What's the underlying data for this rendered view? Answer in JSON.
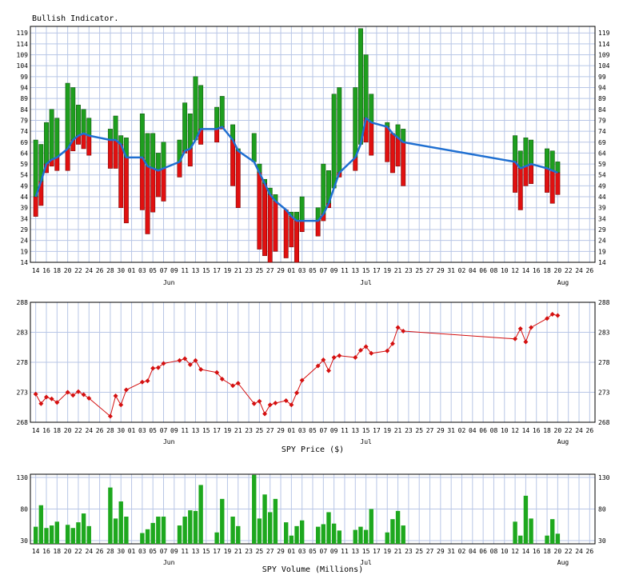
{
  "colors": {
    "grid": "#b8c6e6",
    "up_bar": "#1e9e1e",
    "down_bar": "#e01010",
    "indicator_line": "#1f6fd1",
    "price_line": "#d41010",
    "volume_bar": "#1ea81e"
  },
  "x_axis": {
    "day_labels": [
      "14",
      "16",
      "18",
      "20",
      "22",
      "24",
      "26",
      "28",
      "30",
      "01",
      "03",
      "05",
      "07",
      "09",
      "11",
      "13",
      "15",
      "17",
      "19",
      "21",
      "23",
      "25",
      "27",
      "29",
      "01",
      "03",
      "05",
      "07",
      "09",
      "11",
      "13",
      "15",
      "17",
      "19",
      "21",
      "23",
      "25",
      "27",
      "29",
      "31",
      "02",
      "04",
      "06",
      "08",
      "10",
      "12",
      "14",
      "16",
      "18",
      "20",
      "22",
      "24",
      "26"
    ],
    "month_labels": [
      {
        "label": "Jun",
        "pos": 12.5
      },
      {
        "label": "Jul",
        "pos": 31
      },
      {
        "label": "Aug",
        "pos": 49.5
      }
    ]
  },
  "chart_data": [
    {
      "type": "bar",
      "title": "Bullish Indicator.",
      "ylim": [
        14,
        122
      ],
      "yticks": [
        14,
        19,
        24,
        29,
        34,
        39,
        44,
        49,
        54,
        59,
        64,
        69,
        74,
        79,
        84,
        89,
        94,
        99,
        104,
        109,
        114,
        119
      ],
      "series": [],
      "points": [
        {
          "x": 0,
          "lo": 35,
          "hi": 70,
          "v": 44
        },
        {
          "x": 0.5,
          "lo": 40,
          "hi": 68,
          "v": 51
        },
        {
          "x": 1,
          "lo": 55,
          "hi": 78,
          "v": 59
        },
        {
          "x": 1.5,
          "lo": 58,
          "hi": 84,
          "v": 61
        },
        {
          "x": 2,
          "lo": 56,
          "hi": 80,
          "v": 62
        },
        {
          "x": 3,
          "lo": 56,
          "hi": 96,
          "v": 66
        },
        {
          "x": 3.5,
          "lo": 65,
          "hi": 94,
          "v": 70
        },
        {
          "x": 4,
          "lo": 68,
          "hi": 86,
          "v": 72
        },
        {
          "x": 4.5,
          "lo": 66,
          "hi": 84,
          "v": 73
        },
        {
          "x": 5,
          "lo": 63,
          "hi": 80,
          "v": 72
        },
        {
          "x": 7,
          "lo": 57,
          "hi": 75,
          "v": 70
        },
        {
          "x": 7.5,
          "lo": 57,
          "hi": 81,
          "v": 70
        },
        {
          "x": 8,
          "lo": 39,
          "hi": 72,
          "v": 68
        },
        {
          "x": 8.5,
          "lo": 32,
          "hi": 71,
          "v": 62
        },
        {
          "x": 10,
          "lo": 38,
          "hi": 82,
          "v": 62
        },
        {
          "x": 10.5,
          "lo": 27,
          "hi": 73,
          "v": 58
        },
        {
          "x": 11,
          "lo": 37,
          "hi": 73,
          "v": 57
        },
        {
          "x": 11.5,
          "lo": 44,
          "hi": 64,
          "v": 56
        },
        {
          "x": 12,
          "lo": 42,
          "hi": 69,
          "v": 57
        },
        {
          "x": 13.5,
          "lo": 53,
          "hi": 70,
          "v": 60
        },
        {
          "x": 14,
          "lo": 64,
          "hi": 87,
          "v": 65
        },
        {
          "x": 14.5,
          "lo": 58,
          "hi": 82,
          "v": 66
        },
        {
          "x": 15,
          "lo": 74,
          "hi": 99,
          "v": 70
        },
        {
          "x": 15.5,
          "lo": 68,
          "hi": 95,
          "v": 75
        },
        {
          "x": 17,
          "lo": 69,
          "hi": 85,
          "v": 75
        },
        {
          "x": 17.5,
          "lo": 75,
          "hi": 90,
          "v": 76
        },
        {
          "x": 18.5,
          "lo": 49,
          "hi": 77,
          "v": 70
        },
        {
          "x": 19,
          "lo": 39,
          "hi": 66,
          "v": 65
        },
        {
          "x": 20.5,
          "lo": 61,
          "hi": 73,
          "v": 60
        },
        {
          "x": 21,
          "lo": 20,
          "hi": 59,
          "v": 55
        },
        {
          "x": 21.5,
          "lo": 17,
          "hi": 52,
          "v": 50
        },
        {
          "x": 22,
          "lo": 14,
          "hi": 48,
          "v": 45
        },
        {
          "x": 22.5,
          "lo": 19,
          "hi": 45,
          "v": 42
        },
        {
          "x": 23.5,
          "lo": 16,
          "hi": 38,
          "v": 38
        },
        {
          "x": 24,
          "lo": 21,
          "hi": 37,
          "v": 35
        },
        {
          "x": 24.5,
          "lo": 14,
          "hi": 37,
          "v": 33
        },
        {
          "x": 25,
          "lo": 28,
          "hi": 44,
          "v": 33
        },
        {
          "x": 26.5,
          "lo": 26,
          "hi": 39,
          "v": 33
        },
        {
          "x": 27,
          "lo": 33,
          "hi": 59,
          "v": 36
        },
        {
          "x": 27.5,
          "lo": 39,
          "hi": 56,
          "v": 41
        },
        {
          "x": 28,
          "lo": 55,
          "hi": 91,
          "v": 48
        },
        {
          "x": 28.5,
          "lo": 53,
          "hi": 94,
          "v": 55
        },
        {
          "x": 30,
          "lo": 56,
          "hi": 94,
          "v": 62
        },
        {
          "x": 30.5,
          "lo": 75,
          "hi": 121,
          "v": 68
        },
        {
          "x": 31,
          "lo": 69,
          "hi": 109,
          "v": 80
        },
        {
          "x": 31.5,
          "lo": 63,
          "hi": 91,
          "v": 78
        },
        {
          "x": 33,
          "lo": 60,
          "hi": 78,
          "v": 76
        },
        {
          "x": 33.5,
          "lo": 55,
          "hi": 73,
          "v": 73
        },
        {
          "x": 34,
          "lo": 58,
          "hi": 77,
          "v": 71
        },
        {
          "x": 34.5,
          "lo": 49,
          "hi": 75,
          "v": 69
        },
        {
          "x": 45,
          "lo": 46,
          "hi": 72,
          "v": 60
        },
        {
          "x": 45.5,
          "lo": 38,
          "hi": 65,
          "v": 57
        },
        {
          "x": 46,
          "lo": 49,
          "hi": 71,
          "v": 58
        },
        {
          "x": 46.5,
          "lo": 50,
          "hi": 70,
          "v": 59
        },
        {
          "x": 48,
          "lo": 46,
          "hi": 66,
          "v": 57
        },
        {
          "x": 48.5,
          "lo": 41,
          "hi": 65,
          "v": 56
        },
        {
          "x": 49,
          "lo": 45,
          "hi": 60,
          "v": 55
        }
      ]
    },
    {
      "type": "line",
      "xlabel": "SPY Price ($)",
      "ylim": [
        268,
        288
      ],
      "yticks": [
        268,
        273,
        278,
        283,
        288
      ],
      "x": [
        0,
        0.5,
        1,
        1.5,
        2,
        3,
        3.5,
        4,
        4.5,
        5,
        7,
        7.5,
        8,
        8.5,
        10,
        10.5,
        11,
        11.5,
        12,
        13.5,
        14,
        14.5,
        15,
        15.5,
        17,
        17.5,
        18.5,
        19,
        20.5,
        21,
        21.5,
        22,
        22.5,
        23.5,
        24,
        24.5,
        25,
        26.5,
        27,
        27.5,
        28,
        28.5,
        30,
        30.5,
        31,
        31.5,
        33,
        33.5,
        34,
        34.5,
        45,
        45.5,
        46,
        46.5,
        48,
        48.5,
        49
      ],
      "y": [
        272.7,
        271.1,
        272.2,
        271.9,
        271.3,
        273,
        272.5,
        273.1,
        272.6,
        272,
        269,
        272.4,
        270.9,
        273.4,
        274.7,
        274.9,
        277,
        277.1,
        277.8,
        278.3,
        278.6,
        277.6,
        278.3,
        276.8,
        276.3,
        275.2,
        274.1,
        274.5,
        271.1,
        271.5,
        269.4,
        270.9,
        271.2,
        271.6,
        270.9,
        272.9,
        275,
        277.4,
        278.4,
        276.6,
        278.8,
        279.1,
        278.8,
        280,
        280.6,
        279.5,
        279.9,
        281.1,
        283.8,
        283.2,
        281.9,
        283.6,
        281.4,
        283.8,
        285.3,
        286,
        285.8
      ]
    },
    {
      "type": "bar",
      "xlabel": "SPY Volume (Millions)",
      "ylim": [
        25,
        135
      ],
      "yticks": [
        30,
        80,
        130
      ],
      "x": [
        0,
        0.5,
        1,
        1.5,
        2,
        3,
        3.5,
        4,
        4.5,
        5,
        7,
        7.5,
        8,
        8.5,
        10,
        10.5,
        11,
        11.5,
        12,
        13.5,
        14,
        14.5,
        15,
        15.5,
        17,
        17.5,
        18.5,
        19,
        20.5,
        21,
        21.5,
        22,
        22.5,
        23.5,
        24,
        24.5,
        25,
        26.5,
        27,
        27.5,
        28,
        28.5,
        30,
        30.5,
        31,
        31.5,
        33,
        33.5,
        34,
        34.5,
        45,
        45.5,
        46,
        46.5,
        48,
        48.5,
        49
      ],
      "values": [
        52,
        86,
        50,
        54,
        60,
        55,
        50,
        59,
        73,
        53,
        114,
        65,
        92,
        68,
        42,
        48,
        58,
        68,
        68,
        54,
        68,
        78,
        77,
        118,
        43,
        96,
        68,
        53,
        134,
        65,
        103,
        75,
        96,
        59,
        38,
        53,
        62,
        52,
        56,
        75,
        57,
        46,
        47,
        52,
        47,
        80,
        43,
        64,
        77,
        54,
        60,
        38,
        101,
        65,
        38,
        64,
        41
      ]
    }
  ]
}
